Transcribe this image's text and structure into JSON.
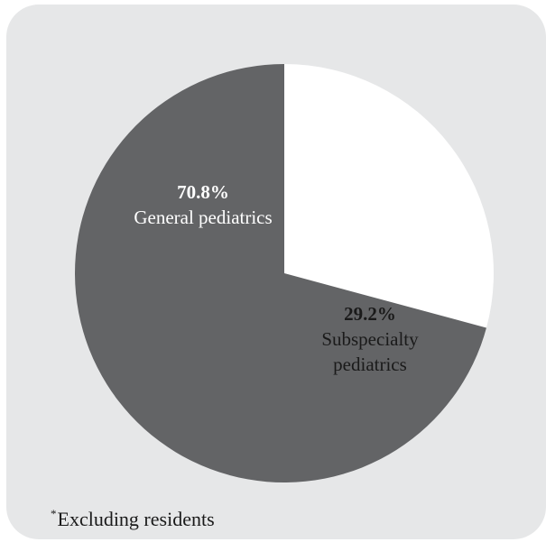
{
  "chart_data": {
    "type": "pie",
    "start_angle_deg": 90,
    "direction": "clockwise",
    "slices": [
      {
        "percent_label": "29.2%",
        "label_lines": [
          "Subspecialty",
          "pediatrics"
        ],
        "value": 29.2,
        "color": "#ffffff",
        "text_color": "#1a1a1a"
      },
      {
        "percent_label": "70.8%",
        "label_lines": [
          "General pediatrics"
        ],
        "value": 70.8,
        "color": "#636466",
        "text_color": "#ffffff"
      }
    ],
    "footnote": {
      "marker": "*",
      "text": "Excluding residents"
    }
  },
  "colors": {
    "panel_background": "#e6e7e8"
  }
}
